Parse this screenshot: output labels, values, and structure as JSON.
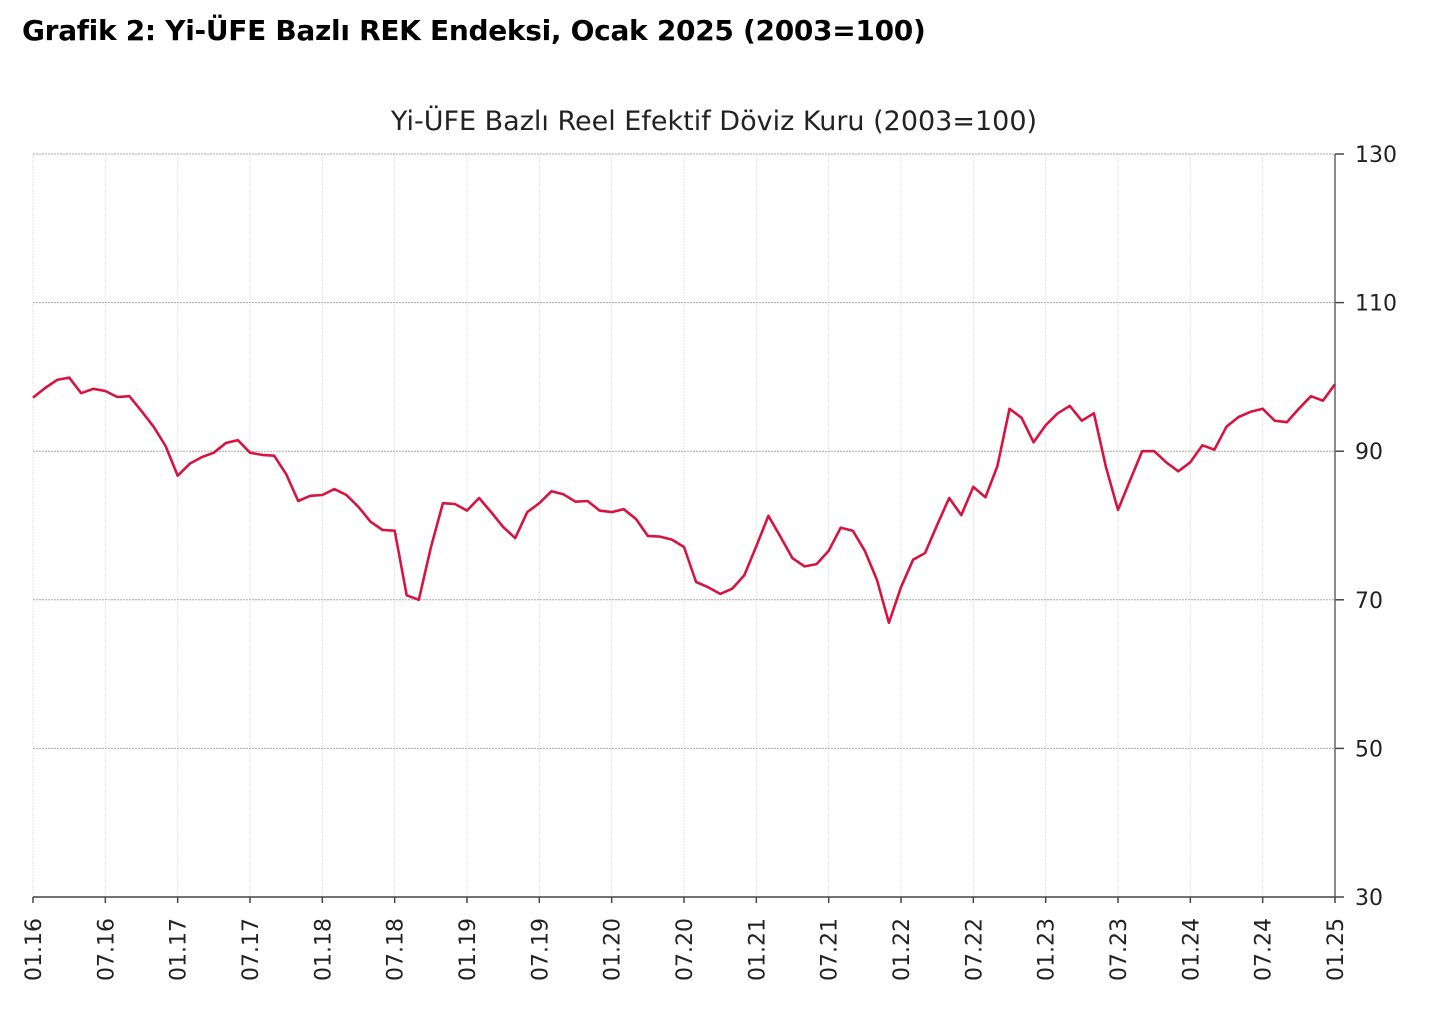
{
  "heading": "Grafik 2: Yi-ÜFE Bazlı REK Endeksi, Ocak 2025 (2003=100)",
  "chart_data": {
    "type": "line",
    "title": "Yi-ÜFE Bazlı Reel Efektif Döviz Kuru (2003=100)",
    "xlabel": "",
    "ylabel": "",
    "ylim": [
      30,
      130
    ],
    "yticks": [
      30,
      50,
      70,
      90,
      110,
      130
    ],
    "y_axis_side": "right",
    "grid": true,
    "x_tick_labels": [
      "01.16",
      "07.16",
      "01.17",
      "07.17",
      "01.18",
      "07.18",
      "01.19",
      "07.19",
      "01.20",
      "07.20",
      "01.21",
      "07.21",
      "01.22",
      "07.22",
      "01.23",
      "07.23",
      "01.24",
      "07.24",
      "01.25"
    ],
    "x_start": "01.16",
    "x_end": "01.25",
    "frequency": "monthly",
    "line_color": "#d7143f",
    "series": [
      {
        "name": "Yi-ÜFE Bazlı REK",
        "values": [
          97.2,
          98.5,
          99.6,
          99.9,
          97.8,
          98.4,
          98.1,
          97.3,
          97.4,
          95.4,
          93.3,
          90.7,
          86.7,
          88.3,
          89.2,
          89.8,
          91.1,
          91.5,
          89.8,
          89.5,
          89.4,
          86.9,
          83.3,
          84.0,
          84.1,
          84.9,
          84.1,
          82.5,
          80.5,
          79.4,
          79.3,
          70.6,
          70.0,
          77.0,
          83.0,
          82.9,
          82.0,
          83.7,
          81.8,
          79.8,
          78.3,
          81.8,
          83.0,
          84.6,
          84.2,
          83.2,
          83.3,
          82.0,
          81.8,
          82.2,
          80.9,
          78.6,
          78.5,
          78.1,
          77.1,
          72.4,
          71.7,
          70.8,
          71.5,
          73.3,
          77.2,
          81.3,
          78.5,
          75.6,
          74.5,
          74.8,
          76.6,
          79.7,
          79.3,
          76.6,
          72.7,
          66.9,
          71.7,
          75.4,
          76.3,
          80.1,
          83.7,
          81.4,
          85.2,
          83.8,
          88.0,
          95.7,
          94.5,
          91.2,
          93.5,
          95.1,
          96.1,
          94.1,
          95.1,
          87.9,
          82.1,
          86.1,
          90.0,
          90.0,
          88.5,
          87.3,
          88.5,
          90.8,
          90.2,
          93.3,
          94.6,
          95.3,
          95.7,
          94.1,
          93.9,
          95.7,
          97.4,
          96.8,
          99.0
        ]
      }
    ]
  }
}
